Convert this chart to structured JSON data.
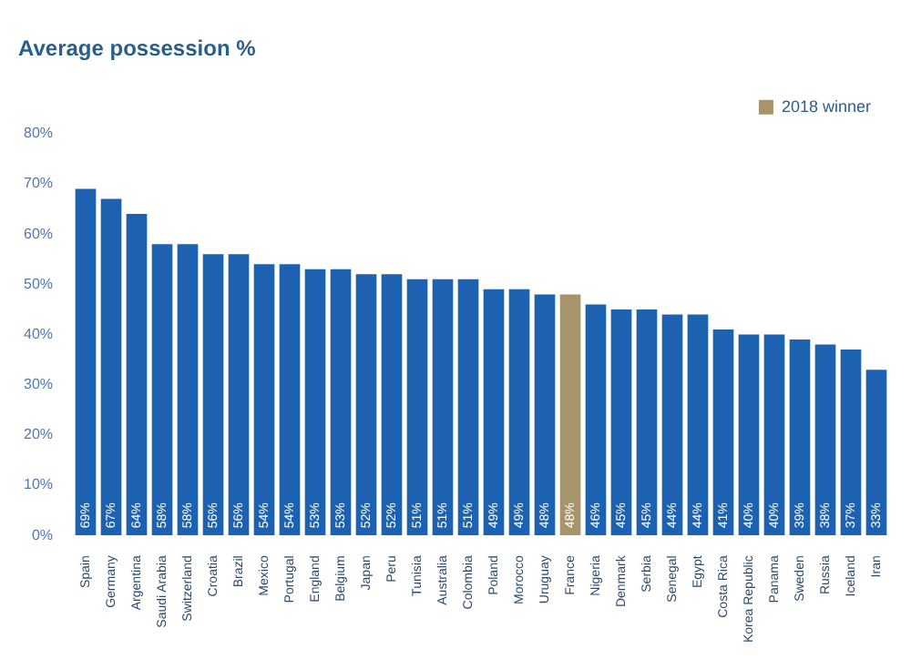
{
  "chart_data": {
    "type": "bar",
    "title": "Average possession %",
    "stacked": true,
    "legend": "top right",
    "categories": [
      "Spain",
      "Germany",
      "Argentina",
      "Saudi Arabia",
      "Switzerland",
      "Croatia",
      "Brazil",
      "Mexico",
      "Portugal",
      "England",
      "Belgium",
      "Japan",
      "Peru",
      "Tunisia",
      "Australia",
      "Colombia",
      "Poland",
      "Morocco",
      "Uruguay",
      "France",
      "Nigeria",
      "Denmark",
      "Serbia",
      "Senegal",
      "Egypt",
      "Costa Rica",
      "Korea Republic",
      "Panama",
      "Sweden",
      "Russia",
      "Iceland",
      "Iran"
    ],
    "series": [
      {
        "color": "#1d62b0",
        "values": [
          69,
          67,
          64,
          58,
          58,
          56,
          56,
          54,
          54,
          53,
          53,
          52,
          52,
          51,
          51,
          51,
          49,
          49,
          48,
          null,
          46,
          45,
          45,
          44,
          44,
          41,
          40,
          40,
          39,
          38,
          37,
          33
        ],
        "value_labels": [
          "69%",
          "67%",
          "64%",
          "58%",
          "58%",
          "56%",
          "56%",
          "54%",
          "54%",
          "53%",
          "53%",
          "52%",
          "52%",
          "51%",
          "51%",
          "51%",
          "49%",
          "49%",
          "48%",
          null,
          "46%",
          "45%",
          "45%",
          "44%",
          "44%",
          "41%",
          "40%",
          "40%",
          "39%",
          "38%",
          "37%",
          "33%"
        ]
      },
      {
        "name": "2018 winner",
        "color": "#a8946a",
        "values": [
          null,
          null,
          null,
          null,
          null,
          null,
          null,
          null,
          null,
          null,
          null,
          null,
          null,
          null,
          null,
          null,
          null,
          null,
          null,
          48,
          null,
          null,
          null,
          null,
          null,
          null,
          null,
          null,
          null,
          null,
          null,
          null
        ],
        "value_labels": [
          null,
          null,
          null,
          null,
          null,
          null,
          null,
          null,
          null,
          null,
          null,
          null,
          null,
          null,
          null,
          null,
          null,
          null,
          null,
          "48%",
          null,
          null,
          null,
          null,
          null,
          null,
          null,
          null,
          null,
          null,
          null,
          null
        ]
      }
    ],
    "ylim": [
      0,
      80
    ],
    "yticks": [
      {
        "value": 0,
        "label": "0%"
      },
      {
        "value": 10,
        "label": "10%"
      },
      {
        "value": 20,
        "label": "20%"
      },
      {
        "value": 30,
        "label": "30%"
      },
      {
        "value": 40,
        "label": "40%"
      },
      {
        "value": 50,
        "label": "50%"
      },
      {
        "value": 60,
        "label": "60%"
      },
      {
        "value": 70,
        "label": "70%"
      },
      {
        "value": 80,
        "label": "80%"
      }
    ],
    "grid": false
  }
}
